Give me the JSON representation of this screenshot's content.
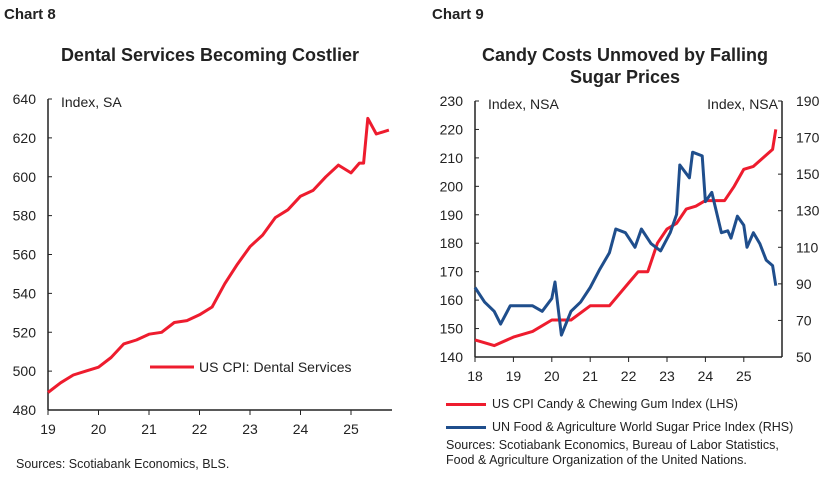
{
  "chart_data": [
    {
      "label": "Chart 8",
      "type": "line",
      "title": "Dental Services Becoming Costlier",
      "ylabel": "Index, SA",
      "ylim": [
        480,
        640
      ],
      "yticks": [
        480,
        500,
        520,
        540,
        560,
        580,
        600,
        620,
        640
      ],
      "xticks": [
        "19",
        "20",
        "21",
        "22",
        "23",
        "24",
        "25"
      ],
      "legend_position": "inside-bottom-right",
      "grid": false,
      "source": "Sources: Scotiabank Economics, BLS.",
      "series": [
        {
          "name": "US CPI: Dental Services",
          "color": "#ee1c2e",
          "axis": "left",
          "x": [
            "2019-01",
            "2019-04",
            "2019-07",
            "2019-10",
            "2020-01",
            "2020-04",
            "2020-07",
            "2020-10",
            "2021-01",
            "2021-04",
            "2021-07",
            "2021-10",
            "2022-01",
            "2022-04",
            "2022-07",
            "2022-10",
            "2023-01",
            "2023-04",
            "2023-07",
            "2023-10",
            "2024-01",
            "2024-04",
            "2024-07",
            "2024-10",
            "2025-01",
            "2025-03",
            "2025-04",
            "2025-05",
            "2025-07",
            "2025-10"
          ],
          "values": [
            489,
            494,
            498,
            500,
            502,
            507,
            514,
            516,
            519,
            520,
            525,
            526,
            529,
            533,
            545,
            555,
            564,
            570,
            579,
            583,
            590,
            593,
            600,
            606,
            602,
            607,
            607,
            630,
            622,
            624
          ]
        }
      ]
    },
    {
      "label": "Chart 9",
      "type": "line",
      "title": "Candy Costs Unmoved by Falling Sugar Prices",
      "ylabel": "Index, NSA",
      "ylabel_right": "Index, NSA",
      "ylim": [
        140,
        230
      ],
      "ylim_right": [
        50,
        190
      ],
      "yticks": [
        140,
        150,
        160,
        170,
        180,
        190,
        200,
        210,
        220,
        230
      ],
      "yticks_right": [
        50,
        70,
        90,
        110,
        130,
        150,
        170,
        190
      ],
      "xticks": [
        "18",
        "19",
        "20",
        "21",
        "22",
        "23",
        "24",
        "25"
      ],
      "legend_position": "bottom",
      "grid": false,
      "source": "Sources: Scotiabank Economics, Bureau of Labor Statistics, Food & Agriculture Organization of the United Nations.",
      "series": [
        {
          "name": "US CPI Candy & Chewing Gum Index (LHS)",
          "color": "#ee1c2e",
          "axis": "left",
          "x": [
            "2018-01",
            "2018-07",
            "2019-01",
            "2019-07",
            "2020-01",
            "2020-07",
            "2021-01",
            "2021-07",
            "2022-01",
            "2022-04",
            "2022-07",
            "2022-10",
            "2023-01",
            "2023-04",
            "2023-07",
            "2023-10",
            "2024-01",
            "2024-04",
            "2024-07",
            "2024-10",
            "2025-01",
            "2025-04",
            "2025-07",
            "2025-10",
            "2025-11"
          ],
          "values": [
            146,
            144,
            147,
            149,
            153,
            153,
            158,
            158,
            166,
            170,
            170,
            180,
            185,
            187,
            192,
            193,
            195,
            195,
            195,
            200,
            206,
            207,
            210,
            213,
            220
          ]
        },
        {
          "name": "UN Food & Agriculture World Sugar Price Index (RHS)",
          "color": "#1f4e8c",
          "axis": "right",
          "x": [
            "2018-01",
            "2018-04",
            "2018-07",
            "2018-09",
            "2018-12",
            "2019-04",
            "2019-07",
            "2019-10",
            "2020-01",
            "2020-02",
            "2020-04",
            "2020-07",
            "2020-10",
            "2021-01",
            "2021-04",
            "2021-07",
            "2021-09",
            "2021-12",
            "2022-03",
            "2022-05",
            "2022-08",
            "2022-11",
            "2023-02",
            "2023-04",
            "2023-05",
            "2023-08",
            "2023-09",
            "2023-12",
            "2024-01",
            "2024-03",
            "2024-06",
            "2024-08",
            "2024-09",
            "2024-11",
            "2025-01",
            "2025-02",
            "2025-04",
            "2025-06",
            "2025-08",
            "2025-10",
            "2025-11"
          ],
          "values": [
            88,
            80,
            75,
            68,
            78,
            78,
            78,
            75,
            82,
            91,
            62,
            75,
            80,
            88,
            98,
            107,
            120,
            118,
            110,
            120,
            112,
            108,
            118,
            128,
            155,
            148,
            162,
            160,
            135,
            140,
            118,
            119,
            115,
            127,
            122,
            110,
            118,
            112,
            103,
            100,
            89
          ]
        }
      ]
    }
  ]
}
